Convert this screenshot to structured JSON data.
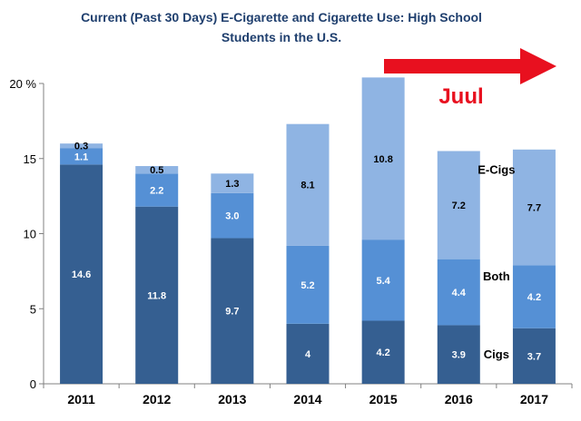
{
  "chart_data": {
    "type": "bar",
    "stacked": true,
    "title_lines": [
      "Current (Past 30 Days) E-Cigarette and Cigarette Use: High School",
      "Students in the U.S."
    ],
    "categories": [
      "2011",
      "2012",
      "2013",
      "2014",
      "2015",
      "2016",
      "2017"
    ],
    "series": [
      {
        "name": "Cigs",
        "values": [
          14.6,
          11.8,
          9.7,
          4,
          4.2,
          3.9,
          3.7
        ],
        "labels": [
          "14.6",
          "11.8",
          "9.7",
          "4",
          "4.2",
          "3.9",
          "3.7"
        ],
        "color": "#355f91",
        "label_color": "#ffffff"
      },
      {
        "name": "Both",
        "values": [
          1.1,
          2.2,
          3.0,
          5.2,
          5.4,
          4.4,
          4.2
        ],
        "labels": [
          "1.1",
          "2.2",
          "3.0",
          "5.2",
          "5.4",
          "4.4",
          "4.2"
        ],
        "color": "#5590d5",
        "label_color": "#ffffff"
      },
      {
        "name": "E-Cigs",
        "values": [
          0.3,
          0.5,
          1.3,
          8.1,
          10.8,
          7.2,
          7.7
        ],
        "labels": [
          "0.3",
          "0.5",
          "1.3",
          "8.1",
          "10.8",
          "7.2",
          "7.7"
        ],
        "color": "#8fb4e3",
        "label_color": "#000000"
      }
    ],
    "ylim": [
      0,
      20
    ],
    "yticks": [
      0,
      5,
      10,
      15,
      20
    ],
    "ytick_labels": [
      "0",
      "5",
      "10",
      "15",
      "20 %"
    ],
    "legend_placement": "inline-right",
    "annotation": {
      "text": "Juul",
      "color": "#e8101f",
      "arrow_color": "#e8101f",
      "arrow_direction": "right"
    },
    "grid": false
  }
}
